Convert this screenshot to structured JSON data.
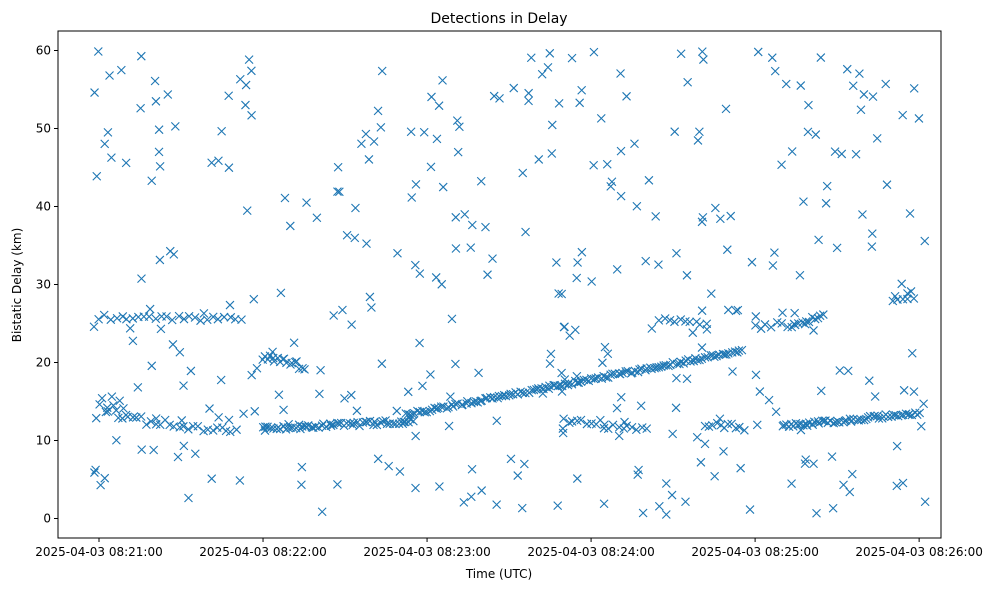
{
  "chart_data": {
    "type": "scatter",
    "title": "Detections in Delay",
    "xlabel": "Time (UTC)",
    "ylabel": "Bistatic Delay (km)",
    "marker": "x",
    "color": "#1f77b4",
    "grid": false,
    "x_ticks": [
      {
        "label": "2025-04-03 08:21:00",
        "t": 0
      },
      {
        "label": "2025-04-03 08:22:00",
        "t": 60
      },
      {
        "label": "2025-04-03 08:23:00",
        "t": 120
      },
      {
        "label": "2025-04-03 08:24:00",
        "t": 180
      },
      {
        "label": "2025-04-03 08:25:00",
        "t": 240
      },
      {
        "label": "2025-04-03 08:26:00",
        "t": 300
      }
    ],
    "y_ticks": [
      0,
      10,
      20,
      30,
      40,
      50,
      60
    ],
    "xlim": [
      -15,
      308
    ],
    "ylim": [
      -2.5,
      62.5
    ],
    "tracks": [
      {
        "t_start": 0,
        "t_end": 52,
        "y_start": 25.8,
        "y_end": 25.6,
        "n": 26,
        "jitter": 0.3
      },
      {
        "t_start": 0,
        "t_end": 10,
        "y_start": 15,
        "y_end": 14,
        "n": 10,
        "jitter": 1.3
      },
      {
        "t_start": 7,
        "t_end": 50,
        "y_start": 13,
        "y_end": 11,
        "n": 26,
        "jitter": 0.5
      },
      {
        "t_start": 60,
        "t_end": 75,
        "y_start": 20.7,
        "y_end": 19.5,
        "n": 18,
        "jitter": 0.5
      },
      {
        "t_start": 60,
        "t_end": 115,
        "y_start": 11.5,
        "y_end": 12.5,
        "n": 60,
        "jitter": 0.3
      },
      {
        "t_start": 112,
        "t_end": 235,
        "y_start": 13.3,
        "y_end": 21.5,
        "n": 140,
        "jitter": 0.2
      },
      {
        "t_start": 170,
        "t_end": 185,
        "y_start": 12.5,
        "y_end": 12.3,
        "n": 10,
        "jitter": 0.3
      },
      {
        "t_start": 185,
        "t_end": 200,
        "y_start": 11.8,
        "y_end": 11.5,
        "n": 10,
        "jitter": 0.3
      },
      {
        "t_start": 205,
        "t_end": 222,
        "y_start": 25.5,
        "y_end": 25.0,
        "n": 10,
        "jitter": 0.3
      },
      {
        "t_start": 222,
        "t_end": 234,
        "y_start": 12.0,
        "y_end": 11.8,
        "n": 10,
        "jitter": 0.3
      },
      {
        "t_start": 240,
        "t_end": 250,
        "y_start": 24.5,
        "y_end": 25.0,
        "n": 6,
        "jitter": 0.3
      },
      {
        "t_start": 250,
        "t_end": 300,
        "y_start": 11.8,
        "y_end": 13.5,
        "n": 60,
        "jitter": 0.25
      },
      {
        "t_start": 252,
        "t_end": 265,
        "y_start": 24.5,
        "y_end": 26.0,
        "n": 14,
        "jitter": 0.3
      },
      {
        "t_start": 290,
        "t_end": 298,
        "y_start": 28.0,
        "y_end": 28.5,
        "n": 5,
        "jitter": 0.3
      }
    ],
    "clutter": {
      "n": 360,
      "t_range": [
        -2,
        303
      ],
      "y_range": [
        0.5,
        60
      ],
      "seed": 20250403
    }
  }
}
